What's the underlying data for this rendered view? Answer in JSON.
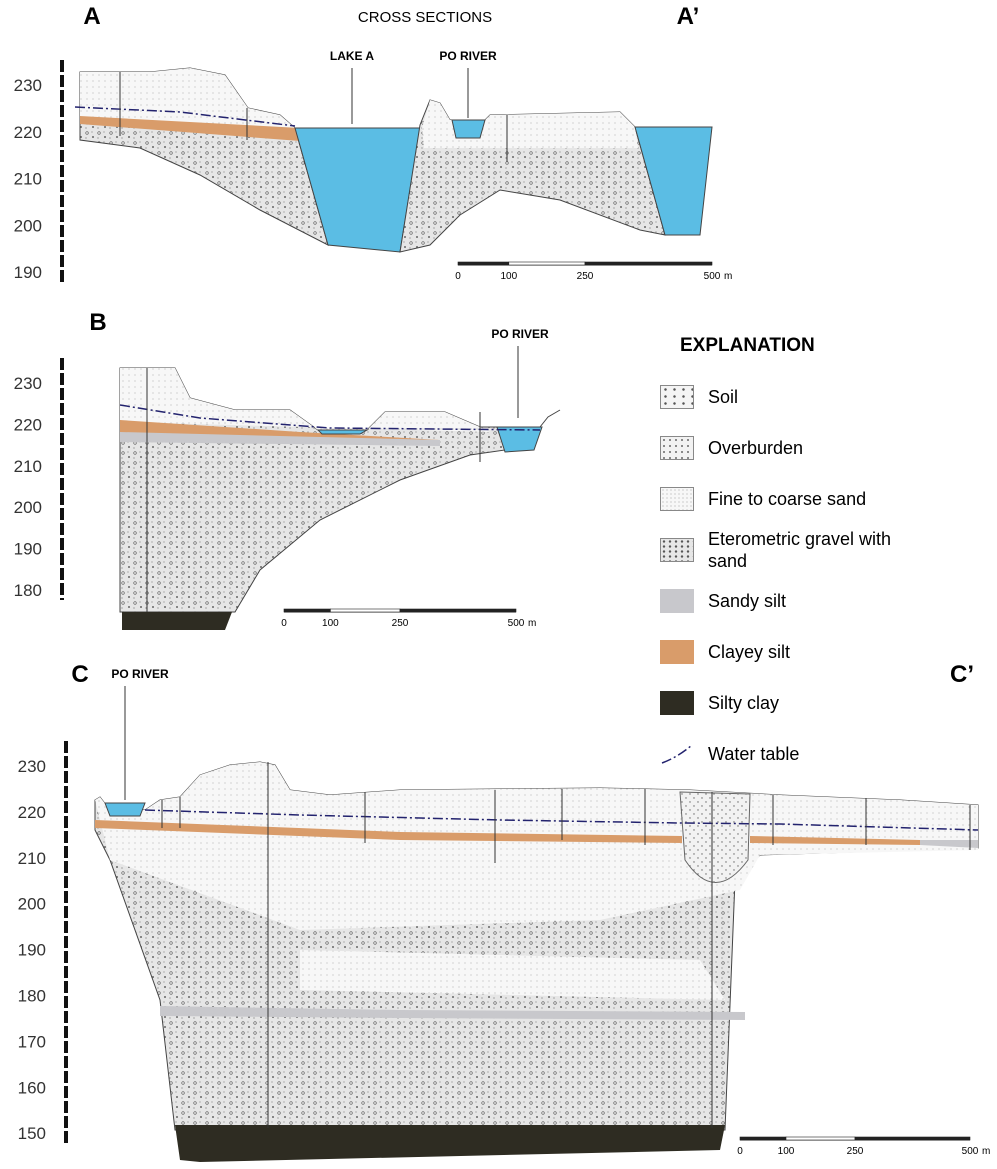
{
  "title": "CROSS SECTIONS",
  "sections": [
    {
      "start": "A",
      "end": "A’",
      "elevations": [
        230,
        220,
        210,
        200,
        190
      ],
      "labels": [
        "LAKE A",
        "PO RIVER"
      ],
      "scale": [
        0,
        100,
        250,
        500
      ],
      "scale_unit": "m"
    },
    {
      "start": "B",
      "elevations": [
        230,
        220,
        210,
        200,
        190,
        180
      ],
      "labels": [
        "PO RIVER"
      ],
      "scale": [
        0,
        100,
        250,
        500
      ],
      "scale_unit": "m"
    },
    {
      "start": "C",
      "end": "C’",
      "elevations": [
        230,
        220,
        210,
        200,
        190,
        180,
        170,
        160,
        150
      ],
      "labels": [
        "PO RIVER"
      ],
      "scale": [
        0,
        100,
        250,
        500
      ],
      "scale_unit": "m"
    }
  ],
  "legend": {
    "title": "EXPLANATION",
    "items": [
      "Soil",
      "Overburden",
      "Fine to coarse sand",
      "Eterometric gravel with sand",
      "Sandy silt",
      "Clayey silt",
      "Silty clay",
      "Water table"
    ]
  }
}
